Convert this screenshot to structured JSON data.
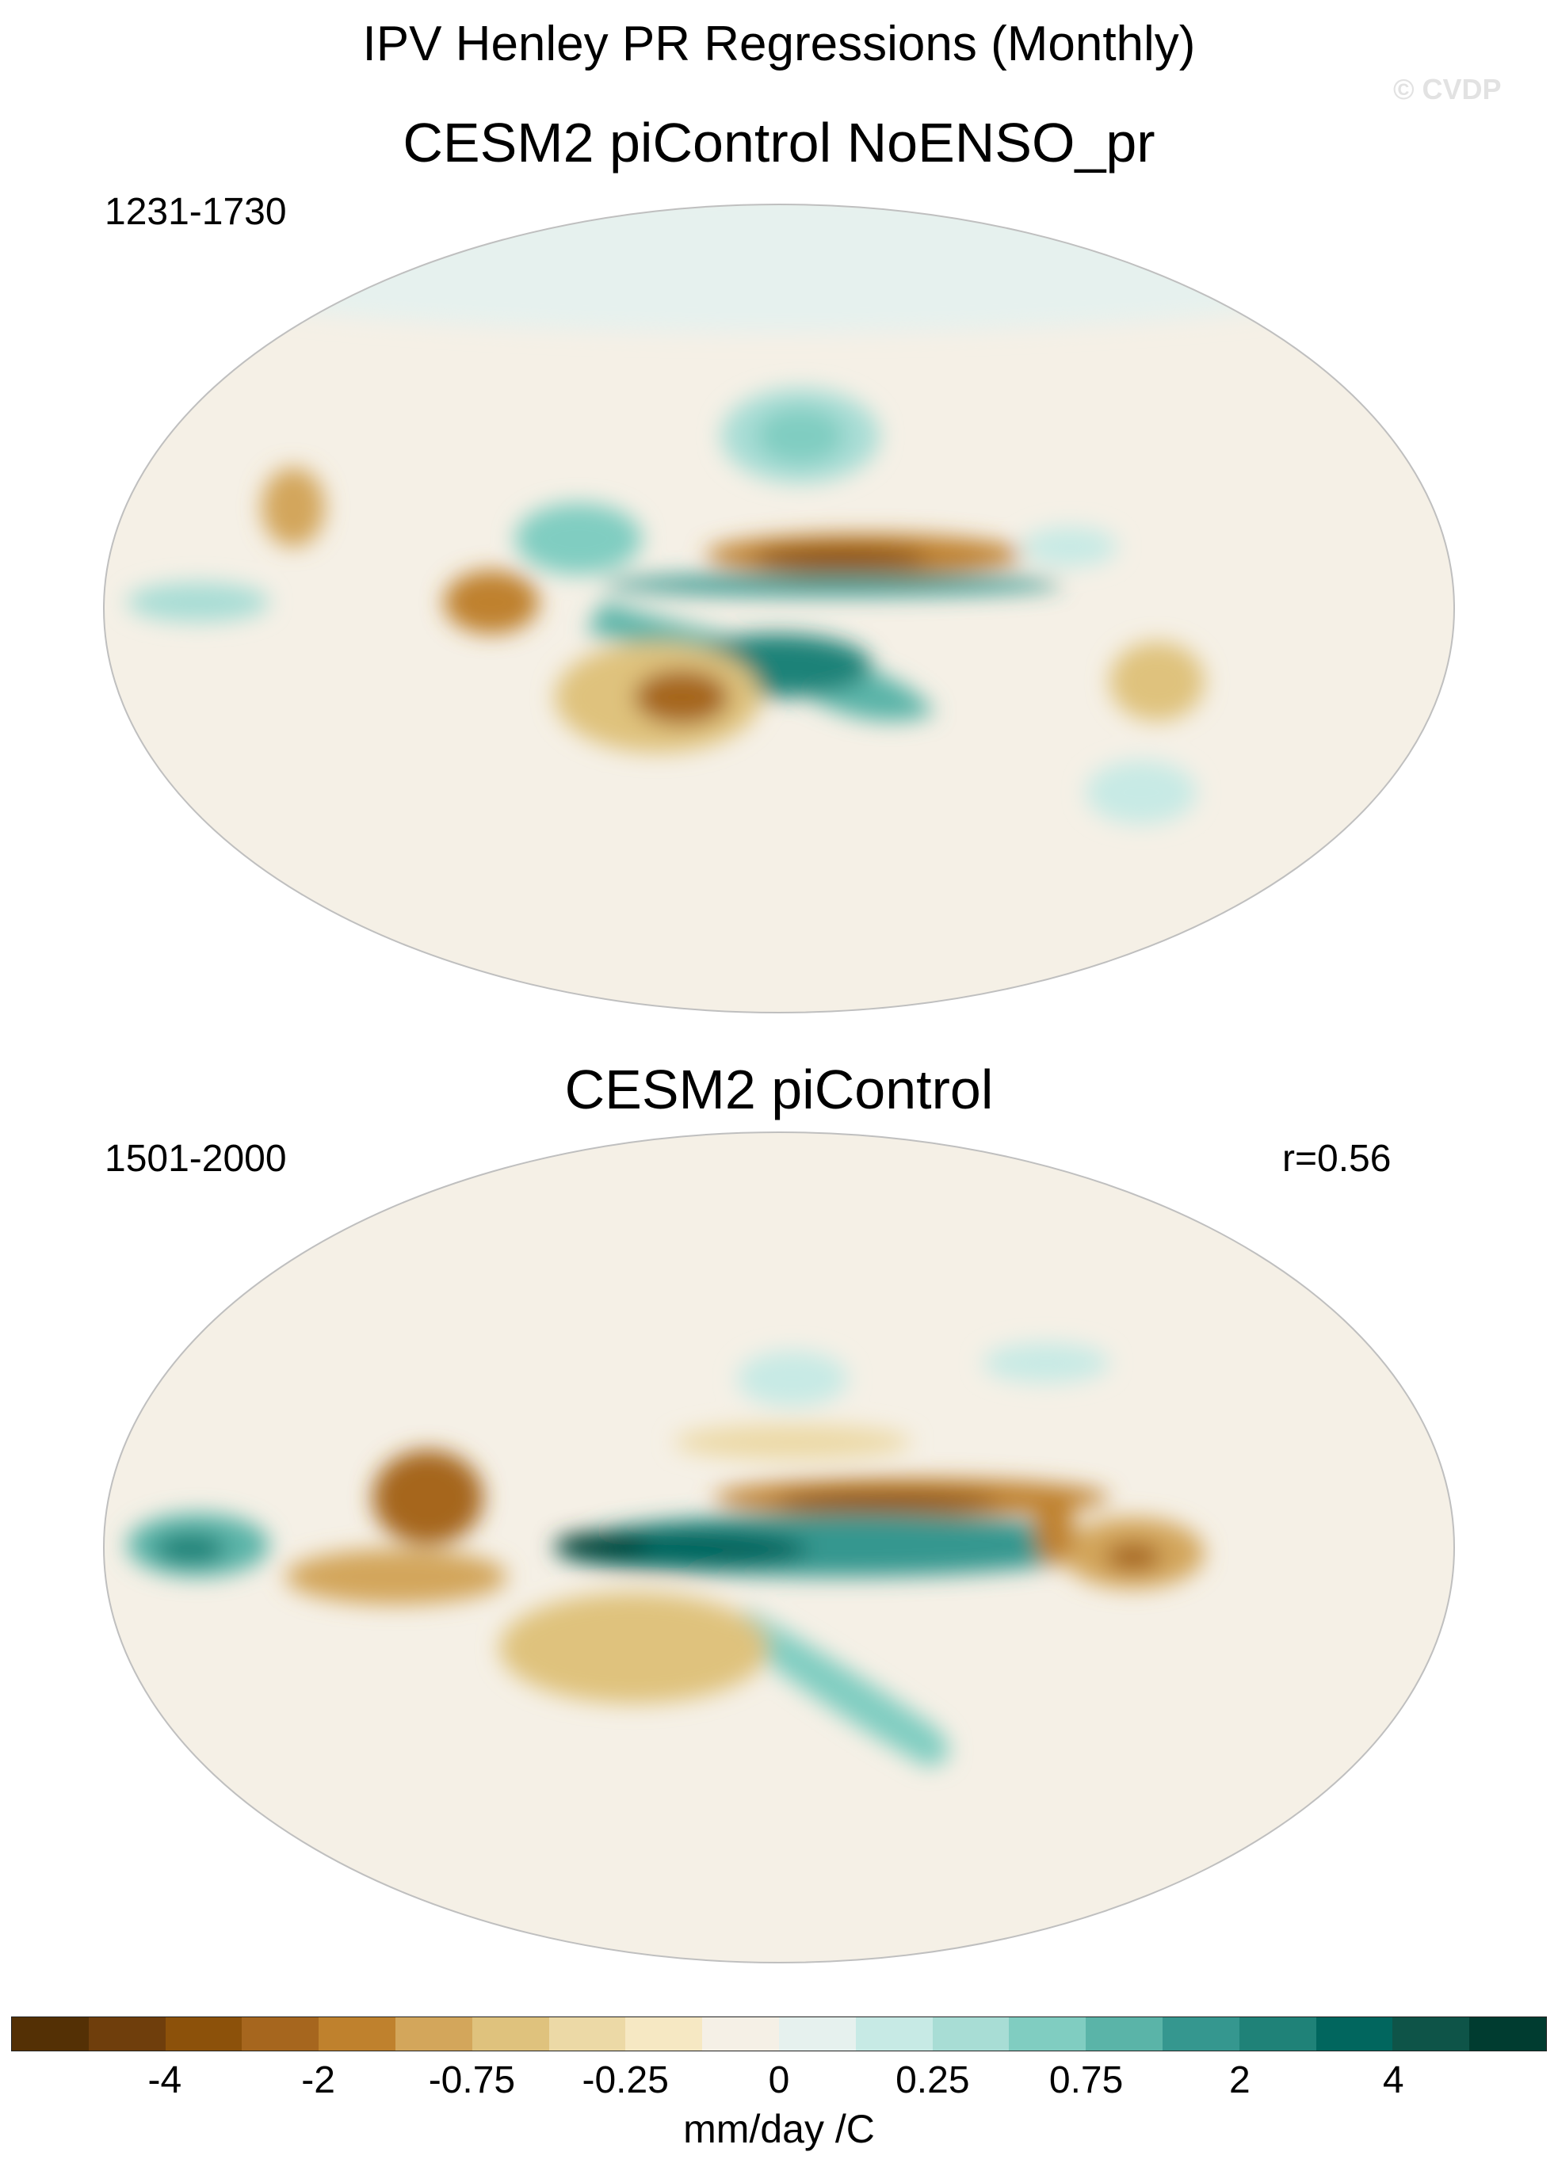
{
  "main_title": "IPV Henley PR Regressions (Monthly)",
  "watermark": "© CVDP",
  "panels": [
    {
      "title": "CESM2 piControl NoENSO_pr",
      "period": "1231-1730",
      "corr": ""
    },
    {
      "title": "CESM2 piControl",
      "period": "1501-2000",
      "corr": "r=0.56"
    }
  ],
  "colorbar": {
    "colors": [
      "#543005",
      "#6f3e0c",
      "#8c510a",
      "#a6661e",
      "#bf812d",
      "#d3a65b",
      "#dfc27d",
      "#ecd9a6",
      "#f6e8c3",
      "#f5f0e6",
      "#e6f1ee",
      "#c7eae5",
      "#a8ddd5",
      "#80cdc1",
      "#5ab4a8",
      "#35978f",
      "#1f8278",
      "#01665e",
      "#0e5448",
      "#003c30"
    ],
    "tick_labels": [
      "-4",
      "-2",
      "-0.75",
      "-0.25",
      "0",
      "0.25",
      "0.75",
      "2",
      "4"
    ],
    "units": "mm/day /C"
  }
}
